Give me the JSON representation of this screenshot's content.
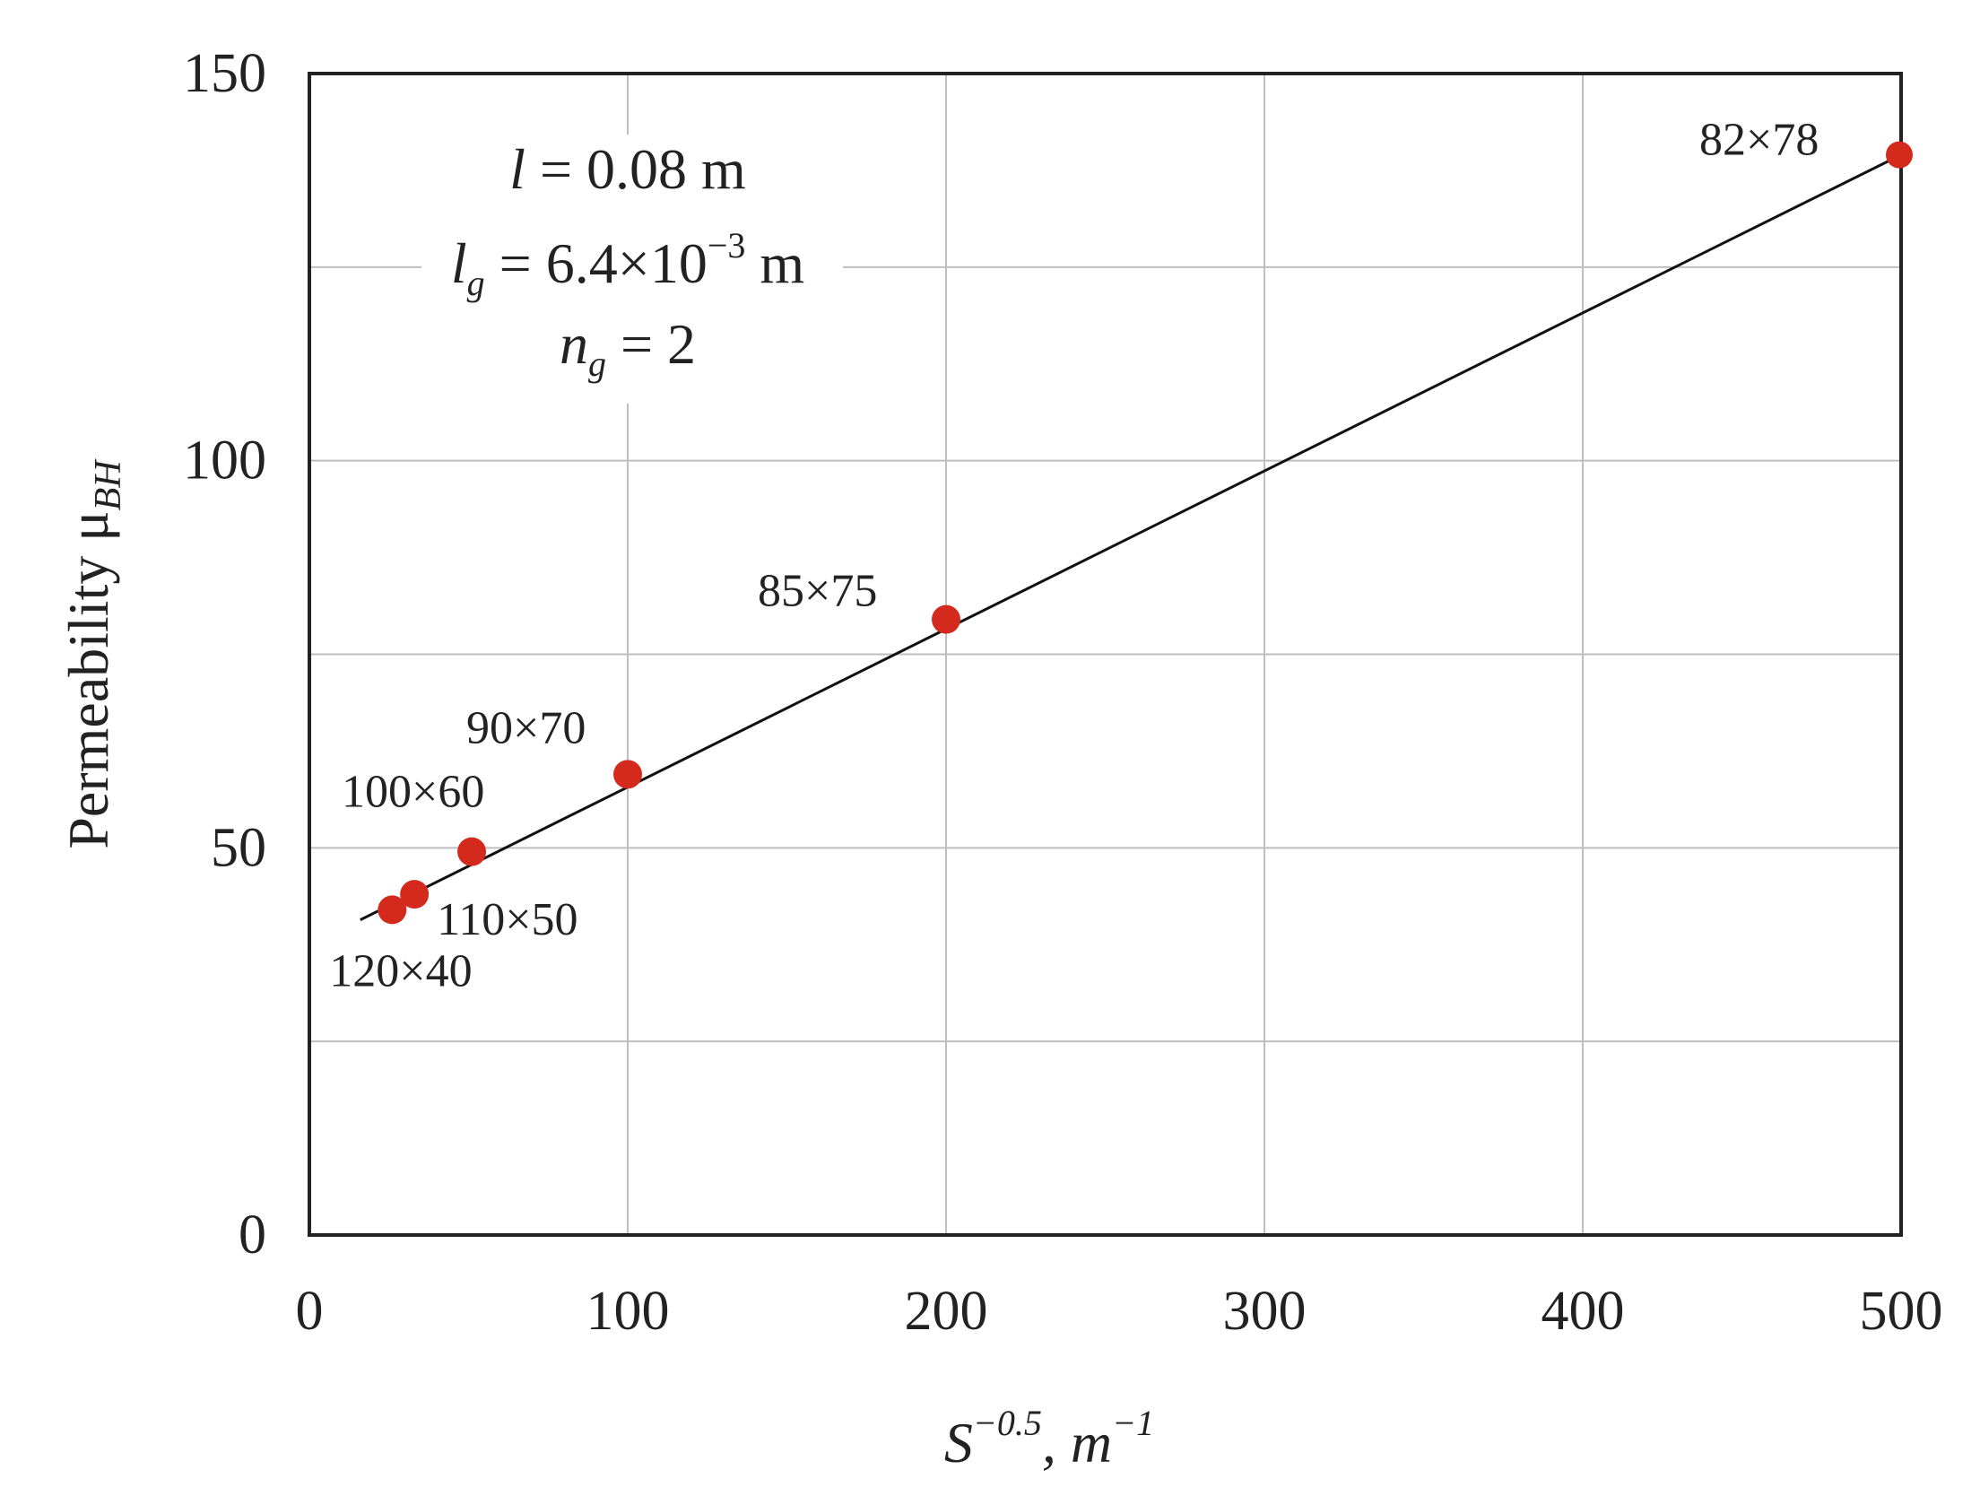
{
  "chart_data": {
    "type": "scatter",
    "title": "",
    "xlabel": "S",
    "xlabel_sup": "−0.5",
    "xlabel_unit": ", m",
    "xlabel_unit_sup": "−1",
    "ylabel": "Permeability  μ",
    "ylabel_sub": "BH",
    "xlim": [
      0,
      500
    ],
    "ylim": [
      0,
      150
    ],
    "x_ticks": [
      0,
      100,
      200,
      300,
      400,
      500
    ],
    "x_tick_labels": [
      "0",
      "100",
      "200",
      "300",
      "400",
      "500"
    ],
    "y_ticks": [
      0,
      50,
      100,
      150
    ],
    "y_tick_labels": [
      "0",
      "50",
      "100",
      "150"
    ],
    "y_minor_grid": [
      25,
      75,
      125
    ],
    "grid": true,
    "marker_color": "#d42a1e",
    "line_color": "#111111",
    "points": [
      {
        "x": 26,
        "y": 42,
        "label": "120×40"
      },
      {
        "x": 33,
        "y": 44,
        "label": "110×50"
      },
      {
        "x": 51,
        "y": 49.5,
        "label": "100×60"
      },
      {
        "x": 100,
        "y": 59.5,
        "label": "90×70"
      },
      {
        "x": 200,
        "y": 79.5,
        "label": "85×75"
      },
      {
        "x": 500,
        "y": 139.5,
        "label": "82×78"
      }
    ],
    "fit_line": {
      "x": [
        16,
        500
      ],
      "y": [
        40.7,
        139.5
      ]
    },
    "annotation": {
      "line1_var": "l",
      "line1_rest": " = 0.08 m",
      "line2_var": "l",
      "line2_sub": "g",
      "line2_rest": " = 6.4×10",
      "line2_sup": "−3",
      "line2_unit": " m",
      "line3_var": "n",
      "line3_sub": "g",
      "line3_rest": " = 2"
    }
  }
}
